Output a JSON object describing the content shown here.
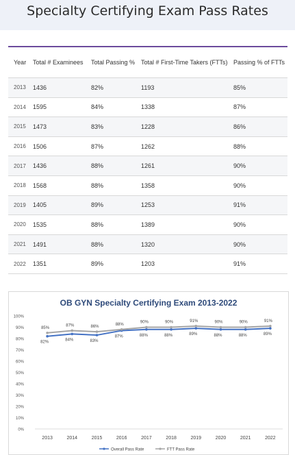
{
  "page": {
    "title": "Specialty Certifying Exam Pass Rates"
  },
  "table": {
    "headers": [
      "Year",
      "Total # Examinees",
      "Total Passing %",
      "Total # First-Time Takers (FTTs)",
      "Passing % of FTTs"
    ],
    "rows": [
      [
        "2013",
        "1436",
        "82%",
        "1193",
        "85%"
      ],
      [
        "2014",
        "1595",
        "84%",
        "1338",
        "87%"
      ],
      [
        "2015",
        "1473",
        "83%",
        "1228",
        "86%"
      ],
      [
        "2016",
        "1506",
        "87%",
        "1262",
        "88%"
      ],
      [
        "2017",
        "1436",
        "88%",
        "1261",
        "90%"
      ],
      [
        "2018",
        "1568",
        "88%",
        "1358",
        "90%"
      ],
      [
        "2019",
        "1405",
        "89%",
        "1253",
        "91%"
      ],
      [
        "2020",
        "1535",
        "88%",
        "1389",
        "90%"
      ],
      [
        "2021",
        "1491",
        "88%",
        "1320",
        "90%"
      ],
      [
        "2022",
        "1351",
        "89%",
        "1203",
        "91%"
      ]
    ]
  },
  "chart_data": {
    "type": "line",
    "title": "OB GYN Specialty Certifying Exam 2013-2022",
    "categories": [
      "2013",
      "2014",
      "2015",
      "2016",
      "2017",
      "2018",
      "2019",
      "2020",
      "2021",
      "2022"
    ],
    "series": [
      {
        "name": "Overall Pass Rate",
        "values": [
          82,
          84,
          83,
          87,
          88,
          88,
          89,
          88,
          88,
          89
        ],
        "color": "#4472c4"
      },
      {
        "name": "FTT Pass Rate",
        "values": [
          85,
          87,
          86,
          88,
          90,
          90,
          91,
          90,
          90,
          91
        ],
        "color": "#a5a5a5"
      }
    ],
    "ylim": [
      0,
      100
    ],
    "yticks": [
      "0%",
      "10%",
      "20%",
      "30%",
      "40%",
      "50%",
      "60%",
      "70%",
      "80%",
      "90%",
      "100%"
    ],
    "grid": false,
    "legend": "bottom"
  }
}
